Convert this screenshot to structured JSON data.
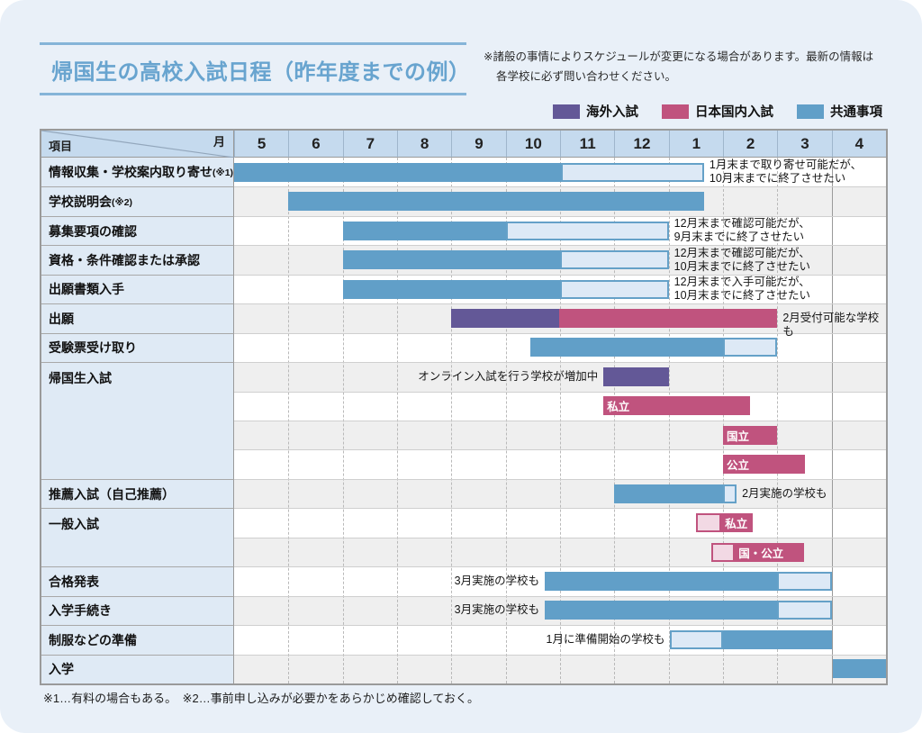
{
  "page": {
    "title": "帰国生の高校入試日程（昨年度までの例）",
    "note_line1": "※諸般の事情によりスケジュールが変更になる場合があります。最新の情報は",
    "note_line2": "各学校に必ず問い合わせください。",
    "footer": "※1…有料の場合もある。　※2…事前申し込みが必要かをあらかじめ確認しておく。"
  },
  "colors": {
    "overseas_purple": "#635897",
    "domestic_pink": "#c0537e",
    "common_blue": "#619fc8",
    "light_blue_fill": "#dde9f6",
    "light_pink_fill": "#f2d9e4",
    "header_bg": "#c5daee",
    "label_bg": "#dfeaf5",
    "row_gray": "#efefef",
    "page_bg": "#e9f0f8",
    "title_blue": "#68a4cf"
  },
  "legend": [
    {
      "label": "海外入試",
      "color": "#635897"
    },
    {
      "label": "日本国内入試",
      "color": "#c0537e"
    },
    {
      "label": "共通事項",
      "color": "#619fc8"
    }
  ],
  "chart_data": {
    "type": "gantt",
    "corner": {
      "top_right": "月",
      "bottom_left": "項目"
    },
    "months": [
      "5",
      "6",
      "7",
      "8",
      "9",
      "10",
      "11",
      "12",
      "1",
      "2",
      "3",
      "4"
    ],
    "month_unit_note": "bar start/end are in month-column units, 0 = start of May, 12 = end of April",
    "groups": [
      {
        "label": "情報収集・学校案内取り寄せ",
        "suffix": "(※1)",
        "rows": [
          {
            "bars": [
              {
                "s": 0,
                "e": 6.02,
                "t": "blue"
              },
              {
                "s": 6.02,
                "e": 8.65,
                "t": "blueLight"
              }
            ],
            "post": "1月末まで取り寄せ可能だが、\n10月末までに終了させたい"
          }
        ]
      },
      {
        "label": "学校説明会",
        "suffix": "(※2)",
        "rows": [
          {
            "bars": [
              {
                "s": 1,
                "e": 8.65,
                "t": "blue"
              }
            ]
          }
        ]
      },
      {
        "label": "募集要項の確認",
        "rows": [
          {
            "bars": [
              {
                "s": 2,
                "e": 5,
                "t": "blue"
              },
              {
                "s": 5,
                "e": 8,
                "t": "blueLight"
              }
            ],
            "post": "12月末まで確認可能だが、\n9月末までに終了させたい"
          }
        ]
      },
      {
        "label": "資格・条件確認または承認",
        "rows": [
          {
            "bars": [
              {
                "s": 2,
                "e": 6,
                "t": "blue"
              },
              {
                "s": 6,
                "e": 8,
                "t": "blueLight"
              }
            ],
            "post": "12月末まで確認可能だが、\n10月末までに終了させたい"
          }
        ]
      },
      {
        "label": "出願書類入手",
        "rows": [
          {
            "bars": [
              {
                "s": 2,
                "e": 6,
                "t": "blue"
              },
              {
                "s": 6,
                "e": 8,
                "t": "blueLight"
              }
            ],
            "post": "12月末まで入手可能だが、\n10月末までに終了させたい"
          }
        ]
      },
      {
        "label": "出願",
        "rows": [
          {
            "bars": [
              {
                "s": 4,
                "e": 5.98,
                "t": "purple"
              },
              {
                "s": 5.98,
                "e": 10,
                "t": "pink"
              }
            ],
            "post": "2月受付可能な学校も"
          }
        ]
      },
      {
        "label": "受験票受け取り",
        "rows": [
          {
            "bars": [
              {
                "s": 5.45,
                "e": 9,
                "t": "blue"
              },
              {
                "s": 9,
                "e": 10,
                "t": "blueLight"
              }
            ]
          }
        ]
      },
      {
        "label": "帰国生入試",
        "rows": [
          {
            "pre": "オンライン入試を行う学校が増加中",
            "bars": [
              {
                "s": 6.8,
                "e": 8,
                "t": "purple"
              }
            ]
          },
          {
            "bars": [
              {
                "s": 6.8,
                "e": 9.5,
                "t": "pink",
                "label": "私立"
              }
            ]
          },
          {
            "bars": [
              {
                "s": 9,
                "e": 10,
                "t": "pink",
                "label": "国立"
              }
            ]
          },
          {
            "bars": [
              {
                "s": 9,
                "e": 10.5,
                "t": "pink",
                "label": "公立"
              }
            ]
          }
        ]
      },
      {
        "label": "推薦入試（自己推薦）",
        "rows": [
          {
            "bars": [
              {
                "s": 7,
                "e": 9,
                "t": "blue"
              },
              {
                "s": 9,
                "e": 9.25,
                "t": "blueLight"
              }
            ],
            "post": "2月実施の学校も"
          }
        ]
      },
      {
        "label": "一般入試",
        "rows": [
          {
            "bars": [
              {
                "s": 8.5,
                "e": 8.97,
                "t": "pinkLight"
              },
              {
                "s": 8.97,
                "e": 9.55,
                "t": "pink",
                "label": "私立"
              }
            ]
          },
          {
            "bars": [
              {
                "s": 8.78,
                "e": 9.22,
                "t": "pinkLight"
              },
              {
                "s": 9.22,
                "e": 10.5,
                "t": "pink",
                "label": "国・公立"
              }
            ]
          }
        ]
      },
      {
        "label": "合格発表",
        "rows": [
          {
            "pre": "3月実施の学校も",
            "bars": [
              {
                "s": 5.72,
                "e": 10,
                "t": "blue"
              },
              {
                "s": 10,
                "e": 11,
                "t": "blueLight"
              }
            ]
          }
        ]
      },
      {
        "label": "入学手続き",
        "rows": [
          {
            "pre": "3月実施の学校も",
            "bars": [
              {
                "s": 5.72,
                "e": 10,
                "t": "blue"
              },
              {
                "s": 10,
                "e": 11,
                "t": "blueLight"
              }
            ]
          }
        ]
      },
      {
        "label": "制服などの準備",
        "rows": [
          {
            "pre": "1月に準備開始の学校も",
            "bars": [
              {
                "s": 8.03,
                "e": 9,
                "t": "blueLight"
              },
              {
                "s": 9,
                "e": 11,
                "t": "blue"
              }
            ]
          }
        ]
      },
      {
        "label": "入学",
        "rows": [
          {
            "bars": [
              {
                "s": 11.03,
                "e": 12,
                "t": "blue"
              }
            ]
          }
        ]
      }
    ]
  }
}
